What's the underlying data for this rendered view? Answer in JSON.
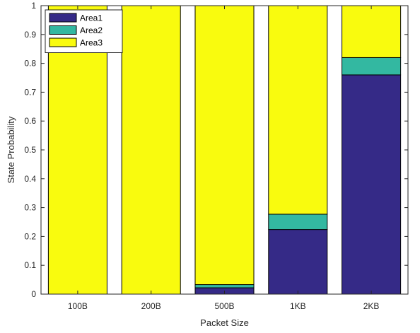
{
  "chart_data": {
    "type": "bar",
    "stacked": true,
    "categories": [
      "100B",
      "200B",
      "500B",
      "1KB",
      "2KB"
    ],
    "series": [
      {
        "name": "Area1",
        "values": [
          0.0,
          0.0,
          0.022,
          0.224,
          0.76
        ],
        "color": "#352a87"
      },
      {
        "name": "Area2",
        "values": [
          0.0,
          0.0,
          0.011,
          0.053,
          0.06
        ],
        "color": "#33b8a1"
      },
      {
        "name": "Area3",
        "values": [
          1.0,
          1.0,
          0.967,
          0.723,
          0.18
        ],
        "color": "#f9fb0e"
      }
    ],
    "title": "",
    "xlabel": "Packet Size",
    "ylabel": "State Probability",
    "ylim": [
      0,
      1
    ],
    "yticks": [
      "0",
      "0.1",
      "0.2",
      "0.3",
      "0.4",
      "0.5",
      "0.6",
      "0.7",
      "0.8",
      "0.9",
      "1"
    ],
    "grid": false,
    "legend_position": "top-left"
  }
}
